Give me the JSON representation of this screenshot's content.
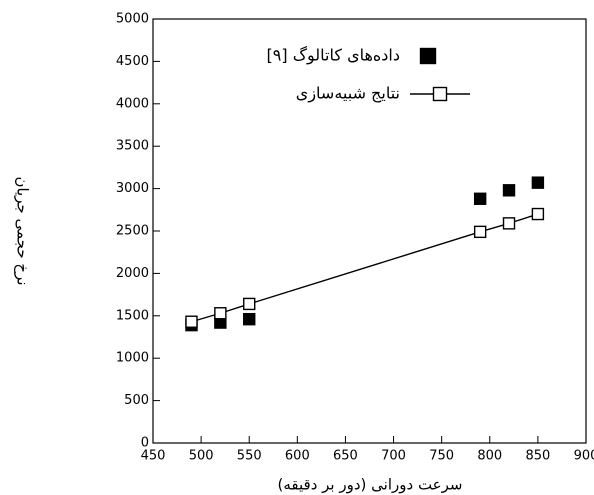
{
  "chart_data": {
    "type": "line",
    "x_label": "سرعت دورانی (دور بر دقیقه)",
    "y_label": "نرخ حجمی جریان",
    "series": [
      {
        "name": "داده‌های کاتالوگ [۹]",
        "color": "#000000",
        "marker": "filled-square",
        "line": false,
        "x": [
          490,
          520,
          550,
          790,
          820,
          850
        ],
        "values": [
          1390,
          1420,
          1460,
          2880,
          2980,
          3070
        ]
      },
      {
        "name": "نتایج شبیه‌سازی",
        "color": "#000000",
        "marker": "open-square",
        "line": true,
        "x": [
          490,
          520,
          550,
          790,
          820,
          850
        ],
        "values": [
          1430,
          1530,
          1640,
          2490,
          2590,
          2700
        ]
      }
    ],
    "xlim": [
      450,
      900
    ],
    "xticks": [
      450,
      500,
      550,
      600,
      650,
      700,
      750,
      800,
      850,
      900
    ],
    "ylim": [
      0,
      5000
    ],
    "yticks": [
      0,
      500,
      1000,
      1500,
      2000,
      2500,
      3000,
      3500,
      4000,
      4500,
      5000
    ],
    "grid": false,
    "legend": "top"
  }
}
